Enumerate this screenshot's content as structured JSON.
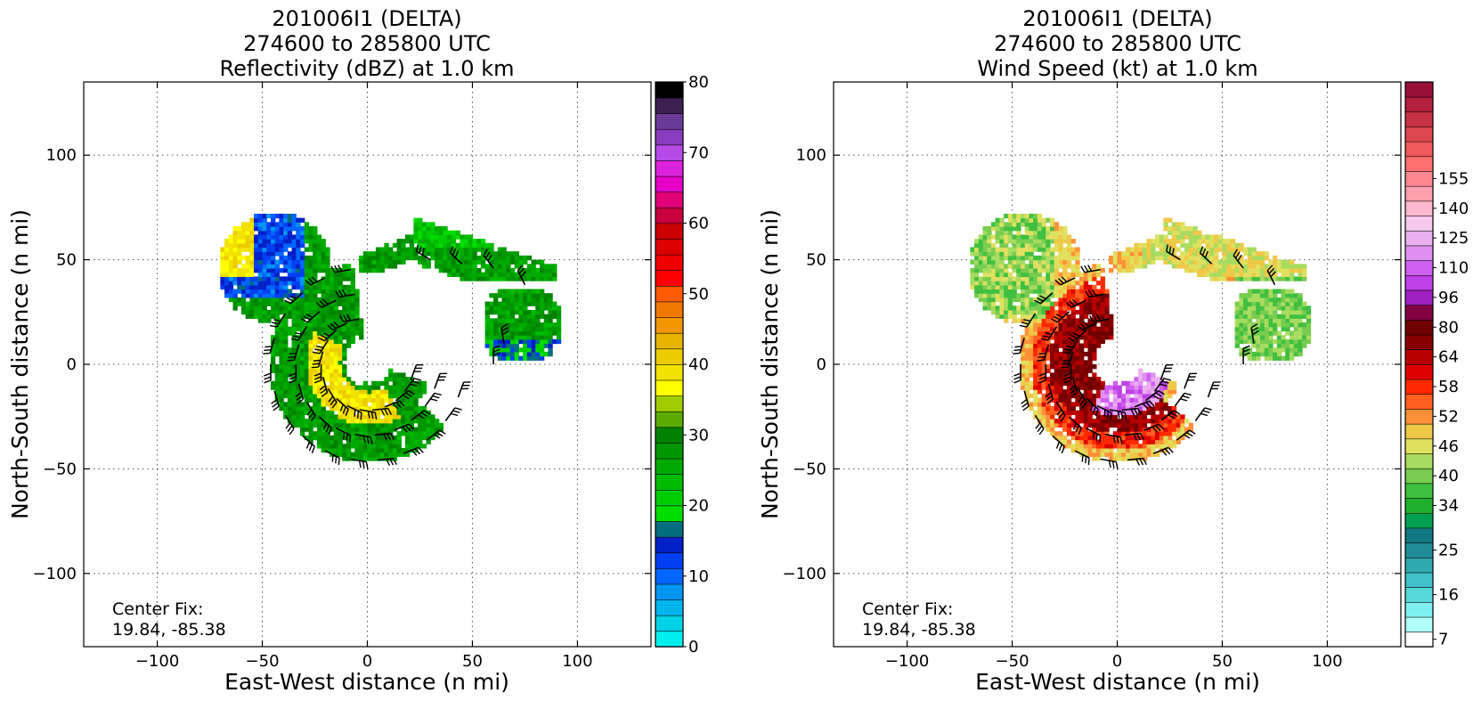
{
  "colors": {
    "reflectivity": [
      "#00eeee",
      "#00d2e6",
      "#00b4ee",
      "#0096f0",
      "#0066ff",
      "#0040f0",
      "#0020c8",
      "#006e7e",
      "#00dd00",
      "#00cc00",
      "#00bb00",
      "#00aa00",
      "#009600",
      "#008200",
      "#5aad00",
      "#a0cc00",
      "#ffff00",
      "#f2e200",
      "#eccc00",
      "#e8b400",
      "#f09600",
      "#f07800",
      "#ff5a00",
      "#ff0000",
      "#ee0000",
      "#dd0000",
      "#cc0000",
      "#c8003c",
      "#e00078",
      "#e600c8",
      "#dd22dd",
      "#b44be6",
      "#8a3cbe",
      "#6a3a98",
      "#3e2050",
      "#000000"
    ],
    "wind": [
      "#ffffff",
      "#b0ffff",
      "#7ff0f0",
      "#58d8d8",
      "#40c0c8",
      "#30a8b0",
      "#208c98",
      "#107880",
      "#00a050",
      "#20b030",
      "#40c040",
      "#78cc50",
      "#a8dc60",
      "#e0e060",
      "#f0c848",
      "#ff9038",
      "#ff6020",
      "#ff2a00",
      "#dd0000",
      "#b80000",
      "#880000",
      "#700000",
      "#800040",
      "#a020c0",
      "#c040e8",
      "#d060f0",
      "#e090f0",
      "#ecb0f0",
      "#f4c8f0",
      "#ffb8d0",
      "#ffa0b0",
      "#ff8890",
      "#ff7070",
      "#f05a5a",
      "#dd4650",
      "#c83246",
      "#b4203c",
      "#961038"
    ]
  },
  "chart_data": [
    {
      "type": "heatmap",
      "title_lines": [
        "201006I1 (DELTA)",
        "274600 to 285800 UTC",
        "Reflectivity (dBZ) at 1.0 km"
      ],
      "xlabel": "East-West distance (n mi)",
      "ylabel": "North-South distance (n mi)",
      "xlim": [
        -135,
        135
      ],
      "ylim": [
        -135,
        135
      ],
      "xticks": [
        -100,
        -50,
        0,
        50,
        100
      ],
      "yticks": [
        -100,
        -50,
        0,
        50,
        100
      ],
      "xtick_labels": [
        "−100",
        "−50",
        "0",
        "50",
        "100"
      ],
      "ytick_labels": [
        "−100",
        "−50",
        "0",
        "50",
        "100"
      ],
      "grid": true,
      "colorbar": {
        "min": 0,
        "max": 80,
        "step": 2.2222,
        "ticks": [
          0,
          10,
          20,
          30,
          40,
          50,
          60,
          70,
          80
        ],
        "tick_labels": [
          "0",
          "10",
          "20",
          "30",
          "40",
          "50",
          "60",
          "70",
          "80"
        ]
      },
      "annotation": [
        "Center Fix:",
        "19.84, -85.38"
      ]
    },
    {
      "type": "heatmap",
      "title_lines": [
        "201006I1 (DELTA)",
        "274600 to 285800 UTC",
        "Wind Speed (kt) at 1.0 km"
      ],
      "xlabel": "East-West distance (n mi)",
      "ylabel": "North-South distance (n mi)",
      "xlim": [
        -135,
        135
      ],
      "ylim": [
        -135,
        135
      ],
      "xticks": [
        -100,
        -50,
        0,
        50,
        100
      ],
      "yticks": [
        -100,
        -50,
        0,
        50,
        100
      ],
      "xtick_labels": [
        "−100",
        "−50",
        "0",
        "50",
        "100"
      ],
      "ytick_labels": [
        "−100",
        "−50",
        "0",
        "50",
        "100"
      ],
      "grid": true,
      "colorbar": {
        "levels": 38,
        "ticks": [
          7,
          16,
          25,
          34,
          40,
          46,
          52,
          58,
          64,
          80,
          96,
          110,
          125,
          140,
          155
        ],
        "tick_labels": [
          "7",
          "16",
          "25",
          "34",
          "40",
          "46",
          "52",
          "58",
          "64",
          "80",
          "96",
          "110",
          "125",
          "140",
          "155"
        ],
        "tick_level_index": [
          0.5,
          3.5,
          6.5,
          9.5,
          11.5,
          13.5,
          15.5,
          17.5,
          19.5,
          21.5,
          23.5,
          25.5,
          27.5,
          29.5,
          31.5
        ]
      },
      "annotation": [
        "Center Fix:",
        "19.84, -85.38"
      ]
    }
  ]
}
